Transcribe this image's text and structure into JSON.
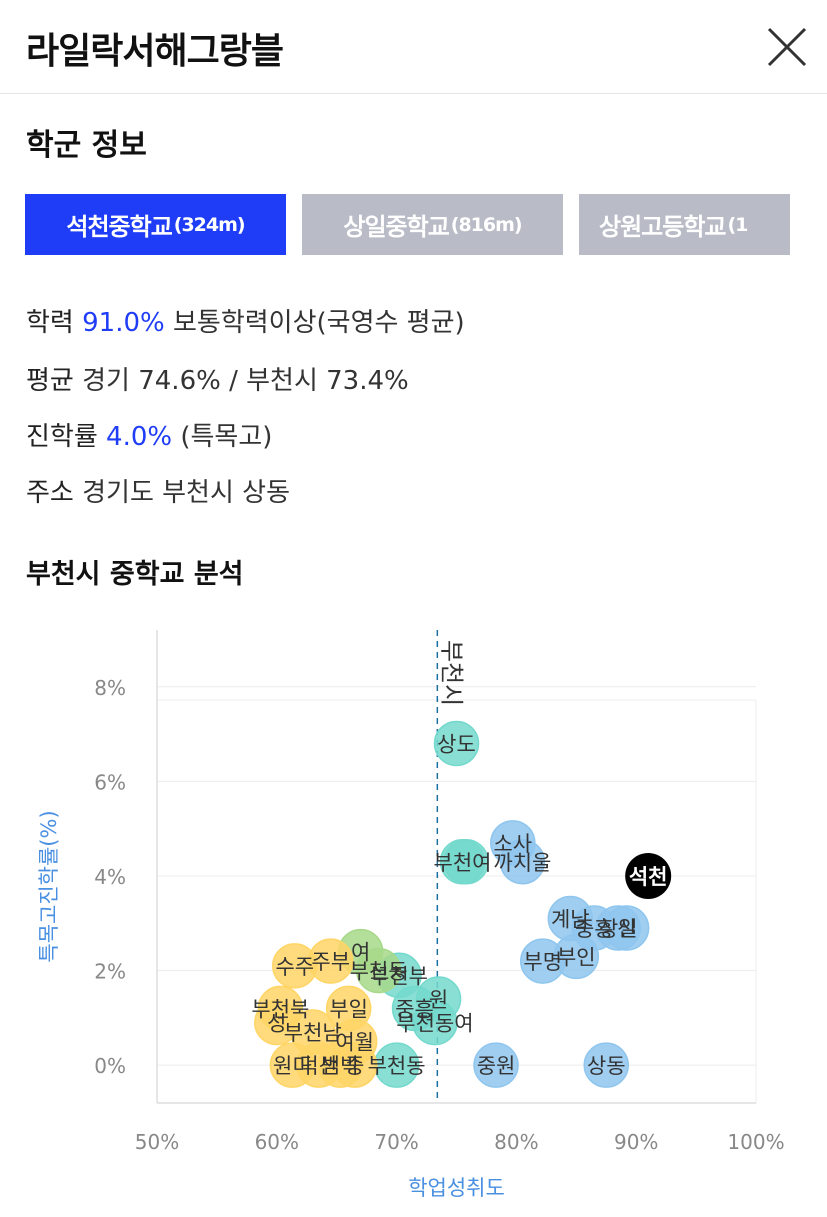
{
  "header": {
    "title": "라일락서해그랑블"
  },
  "section": {
    "title": "학군 정보"
  },
  "tabs": [
    {
      "name": "석천중학교",
      "distance": "(324m)",
      "active": true
    },
    {
      "name": "상일중학교",
      "distance": "(816m)",
      "active": false
    },
    {
      "name": "상원고등학교",
      "distance": "(1",
      "active": false
    }
  ],
  "info": {
    "achievement": {
      "label": "학력",
      "value": "91.0%",
      "suffix": "보통학력이상(국영수 평균)"
    },
    "average": {
      "label": "평균",
      "text": "경기 74.6% / 부천시 73.4%"
    },
    "advancement": {
      "label": "진학률",
      "value": "4.0%",
      "suffix": "(특목고)"
    },
    "address": {
      "label": "주소",
      "text": "경기도 부천시 상동"
    }
  },
  "analysis": {
    "title": "부천시 중학교 분석"
  },
  "colors": {
    "accent": "#1f3df7",
    "inactive_tab": "#b9bcc6",
    "axis_label": "#4a90e2"
  },
  "chart_data": {
    "type": "scatter",
    "xlabel": "학업성취도",
    "ylabel": "특목고진학률(%)",
    "xlim": [
      50,
      100
    ],
    "ylim": [
      -0.8,
      9.2
    ],
    "x_ticks": [
      "50%",
      "60%",
      "70%",
      "80%",
      "90%",
      "100%"
    ],
    "y_ticks": [
      "0%",
      "2%",
      "4%",
      "6%",
      "8%"
    ],
    "reference_line": {
      "label": "부천시",
      "x": 73.4
    },
    "highlight": {
      "label": "석천",
      "x": 91.0,
      "y": 4.0
    },
    "points": [
      {
        "label": "상도",
        "x": 75.0,
        "y": 6.8,
        "group": "teal"
      },
      {
        "label": "",
        "x": 75.8,
        "y": 4.3,
        "group": "teal"
      },
      {
        "label": "부천여",
        "x": 75.5,
        "y": 4.3,
        "group": "teal"
      },
      {
        "label": "소사",
        "x": 79.7,
        "y": 4.7,
        "group": "blue"
      },
      {
        "label": "까치울",
        "x": 80.5,
        "y": 4.3,
        "group": "blue"
      },
      {
        "label": "계남",
        "x": 84.5,
        "y": 3.1,
        "group": "blue"
      },
      {
        "label": "중흥",
        "x": 86.5,
        "y": 2.9,
        "group": "blue"
      },
      {
        "label": "상일",
        "x": 88.5,
        "y": 2.9,
        "group": "blue"
      },
      {
        "label": "신",
        "x": 89.2,
        "y": 2.9,
        "group": "blue"
      },
      {
        "label": "부명",
        "x": 82.2,
        "y": 2.2,
        "group": "blue"
      },
      {
        "label": "부인",
        "x": 85.0,
        "y": 2.3,
        "group": "blue"
      },
      {
        "label": "중원",
        "x": 78.3,
        "y": 0.0,
        "group": "blue"
      },
      {
        "label": "상동",
        "x": 87.5,
        "y": 0.0,
        "group": "blue"
      },
      {
        "label": "원",
        "x": 73.5,
        "y": 1.4,
        "group": "teal"
      },
      {
        "label": "부천동여",
        "x": 73.2,
        "y": 0.9,
        "group": "teal"
      },
      {
        "label": "부천동",
        "x": 70.0,
        "y": 0.0,
        "group": "teal"
      },
      {
        "label": "중흥",
        "x": 71.5,
        "y": 1.2,
        "group": "teal"
      },
      {
        "label": "부천부",
        "x": 70.2,
        "y": 1.9,
        "group": "teal"
      },
      {
        "label": "여",
        "x": 67.0,
        "y": 2.4,
        "group": "green"
      },
      {
        "label": "부천동",
        "x": 68.5,
        "y": 2.0,
        "group": "green"
      },
      {
        "label": "주부",
        "x": 64.5,
        "y": 2.2,
        "group": "yellow"
      },
      {
        "label": "수주",
        "x": 61.5,
        "y": 2.1,
        "group": "yellow"
      },
      {
        "label": "부일",
        "x": 66.0,
        "y": 1.2,
        "group": "yellow"
      },
      {
        "label": "부천북",
        "x": 60.3,
        "y": 1.2,
        "group": "yellow"
      },
      {
        "label": "성",
        "x": 60.0,
        "y": 0.9,
        "group": "yellow"
      },
      {
        "label": "부천남",
        "x": 63.0,
        "y": 0.7,
        "group": "yellow"
      },
      {
        "label": "여월",
        "x": 66.5,
        "y": 0.5,
        "group": "yellow"
      },
      {
        "label": "원미",
        "x": 61.3,
        "y": 0.0,
        "group": "yellow"
      },
      {
        "label": "덕산",
        "x": 63.5,
        "y": 0.0,
        "group": "yellow"
      },
      {
        "label": "범박",
        "x": 65.3,
        "y": 0.0,
        "group": "yellow"
      },
      {
        "label": "중",
        "x": 66.5,
        "y": 0.0,
        "group": "yellow"
      }
    ],
    "group_colors": {
      "blue": "#8fc6ee",
      "teal": "#74d9cd",
      "green": "#a7d98a",
      "yellow": "#ffd566"
    }
  }
}
